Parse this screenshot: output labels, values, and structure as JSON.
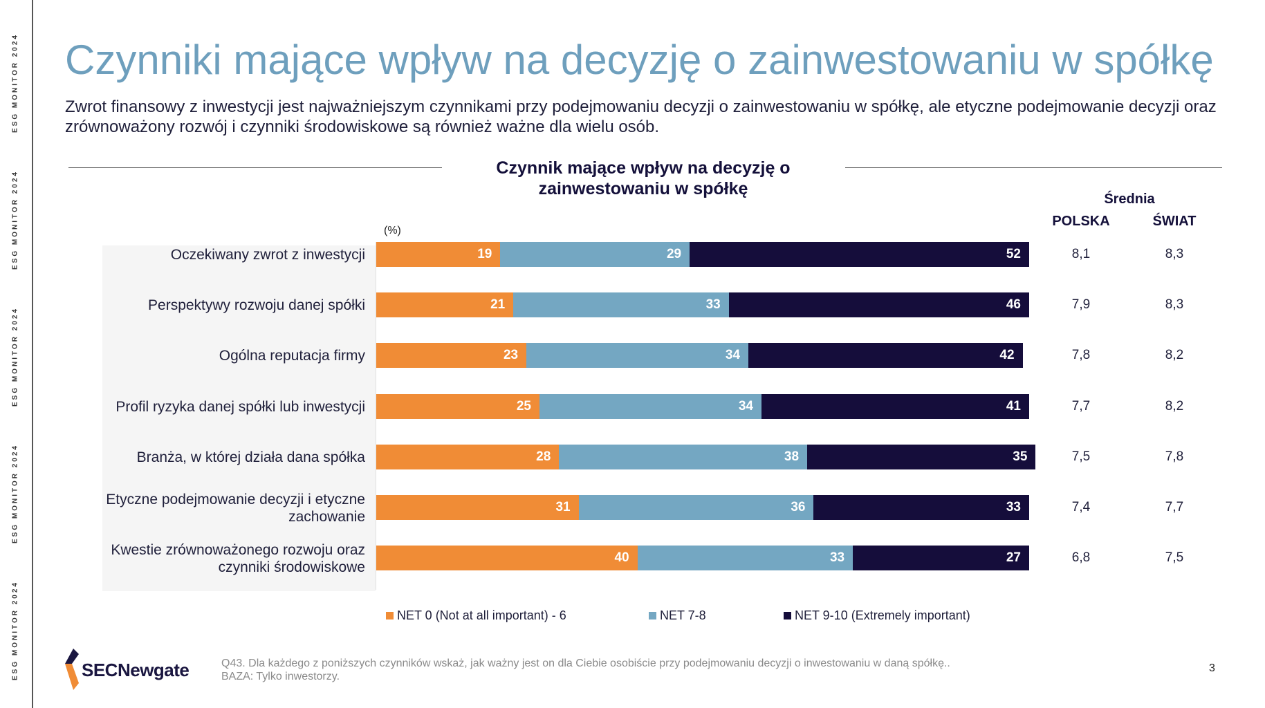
{
  "side_label": "ESG MONITOR 2024",
  "title": "Czynniki mające wpływ na decyzję o zainwestowaniu w spółkę",
  "subtitle": "Zwrot finansowy z inwestycji jest najważniejszym czynnikami przy podejmowaniu decyzji o zainwestowaniu w spółkę, ale etyczne podejmowanie decyzji oraz zrównoważony rozwój i czynniki środowiskowe są również ważne dla wielu osób.",
  "averages_header": {
    "title": "Średnia",
    "col1": "POLSKA",
    "col2": "ŚWIAT"
  },
  "rows": [
    {
      "label": "Oczekiwany zwrot z inwestycji",
      "polska": "8,1",
      "swiat": "8,3"
    },
    {
      "label": "Perspektywy rozwoju danej spółki",
      "polska": "7,9",
      "swiat": "8,3"
    },
    {
      "label": "Ogólna reputacja firmy",
      "polska": "7,8",
      "swiat": "8,2"
    },
    {
      "label": "Profil ryzyka danej spółki lub inwestycji",
      "polska": "7,7",
      "swiat": "8,2"
    },
    {
      "label": "Branża, w której działa dana spółka",
      "polska": "7,5",
      "swiat": "7,8"
    },
    {
      "label": "Etyczne podejmowanie decyzji i etyczne zachowanie",
      "polska": "7,4",
      "swiat": "7,7"
    },
    {
      "label": "Kwestie zrównoważonego rozwoju oraz czynniki środowiskowe",
      "polska": "6,8",
      "swiat": "7,5"
    }
  ],
  "chart_data": {
    "type": "bar",
    "orientation": "horizontal",
    "stacked": true,
    "title": "Czynnik mające wpływ na decyzję o zainwestowaniu w spółkę",
    "unit_label": "(%)",
    "categories": [
      "Oczekiwany zwrot z inwestycji",
      "Perspektywy rozwoju danej spółki",
      "Ogólna reputacja firmy",
      "Profil ryzyka danej spółki lub inwestycji",
      "Branża, w której działa dana spółka",
      "Etyczne podejmowanie decyzji i etyczne zachowanie",
      "Kwestie zrównoważonego rozwoju oraz czynniki środowiskowe"
    ],
    "series": [
      {
        "name": "NET 0 (Not at all important) - 6",
        "color": "#f08c36",
        "values": [
          19,
          21,
          23,
          25,
          28,
          31,
          40
        ]
      },
      {
        "name": "NET 7-8",
        "color": "#74a7c2",
        "values": [
          29,
          33,
          34,
          34,
          38,
          36,
          33
        ]
      },
      {
        "name": "NET 9-10 (Extremely important)",
        "color": "#150d3b",
        "values": [
          52,
          46,
          42,
          41,
          35,
          33,
          27
        ]
      }
    ],
    "xlim": [
      0,
      100
    ],
    "legend_position": "bottom",
    "grid": false
  },
  "brand": {
    "logo_name": "SECNewgate",
    "colors": {
      "orange": "#f08c36",
      "navy": "#1a1640",
      "title_blue": "#6e9fbd"
    }
  },
  "footnote": {
    "line1": "Q43. Dla każdego z poniższych czynników wskaż, jak ważny jest on dla Ciebie osobiście przy podejmowaniu decyzji o inwestowaniu w daną spółkę..",
    "line2": "BAZA: Tylko inwestorzy."
  },
  "page_number": "3"
}
